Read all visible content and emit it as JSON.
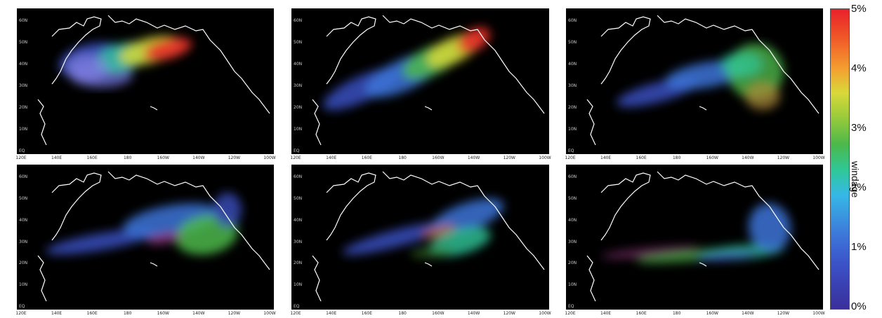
{
  "panels": [
    {
      "lat_ticks": [
        "60N",
        "50N",
        "40N",
        "30N",
        "20N",
        "10N",
        "EQ"
      ],
      "lon_ticks": [
        "120E",
        "140E",
        "160E",
        "180",
        "160W",
        "140W",
        "120W",
        "100W"
      ]
    },
    {
      "lat_ticks": [
        "60N",
        "50N",
        "40N",
        "30N",
        "20N",
        "10N",
        "EQ"
      ],
      "lon_ticks": [
        "120E",
        "140E",
        "160E",
        "180",
        "160W",
        "140W",
        "120W",
        "100W"
      ]
    },
    {
      "lat_ticks": [
        "60N",
        "50N",
        "40N",
        "30N",
        "20N",
        "10N",
        "EQ"
      ],
      "lon_ticks": [
        "120E",
        "140E",
        "160E",
        "180",
        "160W",
        "140W",
        "120W",
        "100W"
      ]
    },
    {
      "lat_ticks": [
        "60N",
        "50N",
        "40N",
        "30N",
        "20N",
        "10N",
        "EQ"
      ],
      "lon_ticks": [
        "120E",
        "140E",
        "160E",
        "180",
        "160W",
        "140W",
        "120W",
        "100W"
      ]
    },
    {
      "lat_ticks": [
        "60N",
        "50N",
        "40N",
        "30N",
        "20N",
        "10N",
        "EQ"
      ],
      "lon_ticks": [
        "120E",
        "140E",
        "160E",
        "180",
        "160W",
        "140W",
        "120W",
        "100W"
      ]
    },
    {
      "lat_ticks": [
        "60N",
        "50N",
        "40N",
        "30N",
        "20N",
        "10N",
        "EQ"
      ],
      "lon_ticks": [
        "120E",
        "140E",
        "160E",
        "180",
        "160W",
        "140W",
        "120W",
        "100W"
      ]
    }
  ],
  "colorbar": {
    "title": "windage",
    "ticks": [
      "5%",
      "4%",
      "3%",
      "2%",
      "1%",
      "0%"
    ],
    "colors": {
      "low": "#3a2e9a",
      "mid": "#4cb84a",
      "high": "#e8202a"
    }
  }
}
